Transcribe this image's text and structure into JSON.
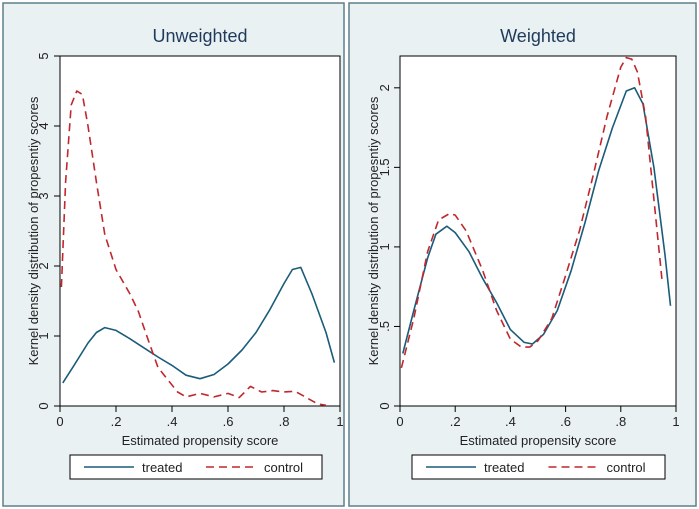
{
  "colors": {
    "treated": "#1a5c7a",
    "control": "#c0282d",
    "panel_bg": "#eaf1f3",
    "plot_bg": "#ffffff",
    "title": "#1f3a5a"
  },
  "chart_data": [
    {
      "type": "line",
      "title": "Unweighted",
      "xlabel": "Estimated propensity score",
      "ylabel": "Kernel density distribution of propesntiy scores",
      "xlim": [
        0,
        1
      ],
      "ylim": [
        0,
        5
      ],
      "xticks": [
        0,
        0.2,
        0.4,
        0.6,
        0.8,
        1
      ],
      "xtick_labels": [
        "0",
        ".2",
        ".4",
        ".6",
        ".8",
        "1"
      ],
      "yticks": [
        0,
        1,
        2,
        3,
        4,
        5
      ],
      "ytick_labels": [
        "0",
        "1",
        "2",
        "3",
        "4",
        "5"
      ],
      "legend": [
        "treated",
        "control"
      ],
      "legend_position": "bottom",
      "series": [
        {
          "name": "treated",
          "style": "solid",
          "x": [
            0.01,
            0.05,
            0.1,
            0.13,
            0.16,
            0.2,
            0.25,
            0.3,
            0.35,
            0.4,
            0.45,
            0.5,
            0.55,
            0.6,
            0.65,
            0.7,
            0.75,
            0.8,
            0.83,
            0.86,
            0.9,
            0.95,
            0.98
          ],
          "y": [
            0.33,
            0.58,
            0.9,
            1.05,
            1.12,
            1.08,
            0.96,
            0.83,
            0.7,
            0.58,
            0.44,
            0.39,
            0.45,
            0.6,
            0.8,
            1.05,
            1.38,
            1.75,
            1.95,
            1.98,
            1.6,
            1.05,
            0.62
          ]
        },
        {
          "name": "control",
          "style": "dashed",
          "x": [
            0.005,
            0.02,
            0.04,
            0.06,
            0.08,
            0.1,
            0.13,
            0.16,
            0.2,
            0.25,
            0.28,
            0.31,
            0.35,
            0.38,
            0.42,
            0.45,
            0.5,
            0.55,
            0.6,
            0.64,
            0.68,
            0.72,
            0.76,
            0.8,
            0.84,
            0.88,
            0.92,
            0.95
          ],
          "y": [
            1.7,
            3.2,
            4.3,
            4.5,
            4.45,
            4.0,
            3.2,
            2.45,
            1.95,
            1.6,
            1.35,
            1.0,
            0.55,
            0.4,
            0.2,
            0.13,
            0.18,
            0.13,
            0.18,
            0.12,
            0.28,
            0.2,
            0.22,
            0.2,
            0.21,
            0.12,
            0.03,
            0.01
          ]
        }
      ]
    },
    {
      "type": "line",
      "title": "Weighted",
      "xlabel": "Estimated propensity score",
      "ylabel": "Kernel density distribution of propesntiy scores",
      "xlim": [
        0,
        1
      ],
      "ylim": [
        0,
        2.2
      ],
      "xticks": [
        0,
        0.2,
        0.4,
        0.6,
        0.8,
        1
      ],
      "xtick_labels": [
        "0",
        ".2",
        ".4",
        ".6",
        ".8",
        "1"
      ],
      "yticks": [
        0,
        0.5,
        1,
        1.5,
        2
      ],
      "ytick_labels": [
        "0",
        ".5",
        "1",
        "1.5",
        "2"
      ],
      "legend": [
        "treated",
        "control"
      ],
      "legend_position": "bottom",
      "series": [
        {
          "name": "treated",
          "style": "solid",
          "x": [
            0.01,
            0.05,
            0.1,
            0.13,
            0.17,
            0.2,
            0.25,
            0.3,
            0.35,
            0.4,
            0.45,
            0.48,
            0.52,
            0.57,
            0.62,
            0.67,
            0.72,
            0.77,
            0.82,
            0.85,
            0.88,
            0.92,
            0.96,
            0.98
          ],
          "y": [
            0.33,
            0.6,
            0.93,
            1.08,
            1.13,
            1.09,
            0.97,
            0.8,
            0.65,
            0.48,
            0.4,
            0.39,
            0.45,
            0.6,
            0.85,
            1.15,
            1.48,
            1.75,
            1.98,
            2.0,
            1.9,
            1.5,
            0.95,
            0.63
          ]
        },
        {
          "name": "control",
          "style": "dashed",
          "x": [
            0.005,
            0.05,
            0.1,
            0.14,
            0.18,
            0.2,
            0.24,
            0.3,
            0.35,
            0.4,
            0.44,
            0.47,
            0.5,
            0.55,
            0.6,
            0.65,
            0.7,
            0.75,
            0.8,
            0.82,
            0.84,
            0.86,
            0.89,
            0.92,
            0.95
          ],
          "y": [
            0.24,
            0.55,
            0.97,
            1.17,
            1.21,
            1.2,
            1.1,
            0.85,
            0.6,
            0.42,
            0.37,
            0.37,
            0.41,
            0.55,
            0.82,
            1.1,
            1.45,
            1.82,
            2.13,
            2.19,
            2.18,
            2.1,
            1.82,
            1.3,
            0.78
          ]
        }
      ]
    }
  ]
}
